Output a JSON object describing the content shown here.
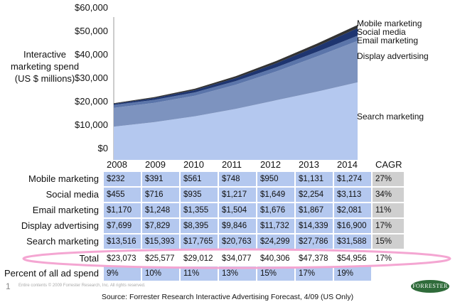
{
  "chart_data": {
    "type": "area",
    "stacked": true,
    "ylabel": "Interactive marketing spend (US $ millions)",
    "ylim": [
      0,
      60000
    ],
    "yticks": [
      "$60,000",
      "$50,000",
      "$40,000",
      "$30,000",
      "$20,000",
      "$10,000",
      "$0"
    ],
    "categories": [
      "2008",
      "2009",
      "2010",
      "2011",
      "2012",
      "2013",
      "2014"
    ],
    "series": [
      {
        "name": "Search marketing",
        "values": [
          13516,
          15393,
          17765,
          20763,
          24299,
          27786,
          31588
        ],
        "color": "#b4c8ef",
        "cagr": "15%",
        "display": [
          "$13,516",
          "$15,393",
          "$17,765",
          "$20,763",
          "$24,299",
          "$27,786",
          "$31,588"
        ]
      },
      {
        "name": "Display advertising",
        "values": [
          7699,
          7829,
          8395,
          9846,
          11732,
          14339,
          16900
        ],
        "color": "#7d93bf",
        "cagr": "17%",
        "display": [
          "$7,699",
          "$7,829",
          "$8,395",
          "$9,846",
          "$11,732",
          "$14,339",
          "$16,900"
        ]
      },
      {
        "name": "Email marketing",
        "values": [
          1170,
          1248,
          1355,
          1504,
          1676,
          1867,
          2081
        ],
        "color": "#5b75aa",
        "cagr": "11%",
        "display": [
          "$1,170",
          "$1,248",
          "$1,355",
          "$1,504",
          "$1,676",
          "$1,867",
          "$2,081"
        ]
      },
      {
        "name": "Social media",
        "values": [
          455,
          716,
          935,
          1217,
          1649,
          2254,
          3113
        ],
        "color": "#1e3570",
        "cagr": "34%",
        "display": [
          "$455",
          "$716",
          "$935",
          "$1,217",
          "$1,649",
          "$2,254",
          "$3,113"
        ]
      },
      {
        "name": "Mobile marketing",
        "values": [
          232,
          391,
          561,
          748,
          950,
          1131,
          1274
        ],
        "color": "#333333",
        "cagr": "27%",
        "display": [
          "$232",
          "$391",
          "$561",
          "$748",
          "$950",
          "$1,131",
          "$1,274"
        ]
      }
    ]
  },
  "table": {
    "cagr_header": "CAGR",
    "total": {
      "label": "Total",
      "values": [
        "$23,073",
        "$25,577",
        "$29,012",
        "$34,077",
        "$40,306",
        "$47,378",
        "$54,956"
      ],
      "cagr": "17%"
    },
    "percent": {
      "label": "Percent of all ad spend",
      "values": [
        "9%",
        "10%",
        "11%",
        "13%",
        "15%",
        "17%",
        "19%"
      ]
    }
  },
  "footer": {
    "page_number": "1",
    "copyright": "Entire contents © 2009 Forrester Research, Inc. All rights reserved.",
    "logo": "FORRESTER",
    "source": "Source: Forrester Research Interactive Advertising Forecast, 4/09 (US Only)"
  },
  "highlight_color": "#f4a6d2"
}
